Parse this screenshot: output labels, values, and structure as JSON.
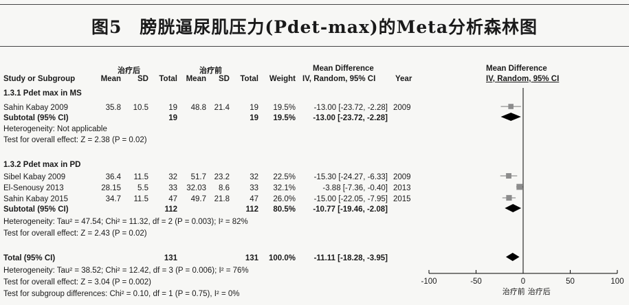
{
  "figure_title": "图5　膀胱逼尿肌压力(Pdet-max)的Meta分析森林图",
  "headers": {
    "group_exp": "治疗后",
    "group_ctl": "治疗前",
    "study": "Study or Subgroup",
    "mean1": "Mean",
    "sd1": "SD",
    "total1": "Total",
    "mean2": "Mean",
    "sd2": "SD",
    "total2": "Total",
    "weight": "Weight",
    "md_title": "Mean Difference",
    "md_method": "IV, Random, 95% CI",
    "year": "Year",
    "plot_title": "Mean Difference",
    "plot_method": "IV, Random, 95% CI"
  },
  "subgroups": [
    {
      "title": "1.3.1 Pdet max in MS",
      "studies": [
        {
          "study": "Sahin Kabay 2009",
          "mean1": "35.8",
          "sd1": "10.5",
          "total1": "19",
          "mean2": "48.8",
          "sd2": "21.4",
          "total2": "19",
          "weight": "19.5%",
          "ci": "-13.00 [-23.72, -2.28]",
          "year": "2009"
        }
      ],
      "subtotal": {
        "label": "Subtotal (95% CI)",
        "total1": "19",
        "total2": "19",
        "weight": "19.5%",
        "ci": "-13.00 [-23.72, -2.28]"
      },
      "heterogeneity": "Heterogeneity: Not applicable",
      "overall": "Test for overall effect: Z = 2.38 (P = 0.02)"
    },
    {
      "title": "1.3.2 Pdet max in PD",
      "studies": [
        {
          "study": "Sibel Kabay 2009",
          "mean1": "36.4",
          "sd1": "11.5",
          "total1": "32",
          "mean2": "51.7",
          "sd2": "23.2",
          "total2": "32",
          "weight": "22.5%",
          "ci": "-15.30 [-24.27, -6.33]",
          "year": "2009"
        },
        {
          "study": "El-Senousy 2013",
          "mean1": "28.15",
          "sd1": "5.5",
          "total1": "33",
          "mean2": "32.03",
          "sd2": "8.6",
          "total2": "33",
          "weight": "32.1%",
          "ci": "-3.88 [-7.36, -0.40]",
          "year": "2013"
        },
        {
          "study": "Sahin Kabay 2015",
          "mean1": "34.7",
          "sd1": "11.5",
          "total1": "47",
          "mean2": "49.7",
          "sd2": "21.8",
          "total2": "47",
          "weight": "26.0%",
          "ci": "-15.00 [-22.05, -7.95]",
          "year": "2015"
        }
      ],
      "subtotal": {
        "label": "Subtotal (95% CI)",
        "total1": "112",
        "total2": "112",
        "weight": "80.5%",
        "ci": "-10.77 [-19.46, -2.08]"
      },
      "heterogeneity": "Heterogeneity: Tau² = 47.54; Chi² = 11.32, df = 2 (P = 0.003); I² = 82%",
      "overall": "Test for overall effect: Z = 2.43 (P = 0.02)"
    }
  ],
  "total": {
    "label": "Total (95% CI)",
    "total1": "131",
    "total2": "131",
    "weight": "100.0%",
    "ci": "-11.11 [-18.28, -3.95]",
    "heterogeneity": "Heterogeneity: Tau² = 38.52; Chi² = 12.42, df = 3 (P = 0.006); I² = 76%",
    "overall": "Test for overall effect: Z = 3.04 (P = 0.002)",
    "subgroup_diff": "Test for subgroup differences: Chi² = 0.10, df = 1 (P = 0.75), I² = 0%"
  },
  "chart_data": {
    "type": "forest",
    "xlim": [
      -100,
      100
    ],
    "ticks": [
      -100,
      -50,
      0,
      50,
      100
    ],
    "favours_left": "治疗前",
    "favours_right": "治疗后",
    "colors": {
      "square": "#8c8c8c",
      "ci_line": "#777777",
      "diamond": "#000000",
      "axis": "#000000"
    },
    "studies": [
      {
        "label": "Sahin Kabay 2009",
        "md": -13.0,
        "lo": -23.72,
        "hi": -2.28,
        "weight": 19.5
      },
      {
        "label": "Sibel Kabay 2009",
        "md": -15.3,
        "lo": -24.27,
        "hi": -6.33,
        "weight": 22.5
      },
      {
        "label": "El-Senousy 2013",
        "md": -3.88,
        "lo": -7.36,
        "hi": -0.4,
        "weight": 32.1
      },
      {
        "label": "Sahin Kabay 2015",
        "md": -15.0,
        "lo": -22.05,
        "hi": -7.95,
        "weight": 26.0
      }
    ],
    "diamonds": [
      {
        "label": "Subtotal MS",
        "md": -13.0,
        "lo": -23.72,
        "hi": -2.28
      },
      {
        "label": "Subtotal PD",
        "md": -10.77,
        "lo": -19.46,
        "hi": -2.08
      },
      {
        "label": "Total",
        "md": -11.11,
        "lo": -18.28,
        "hi": -3.95
      }
    ]
  }
}
